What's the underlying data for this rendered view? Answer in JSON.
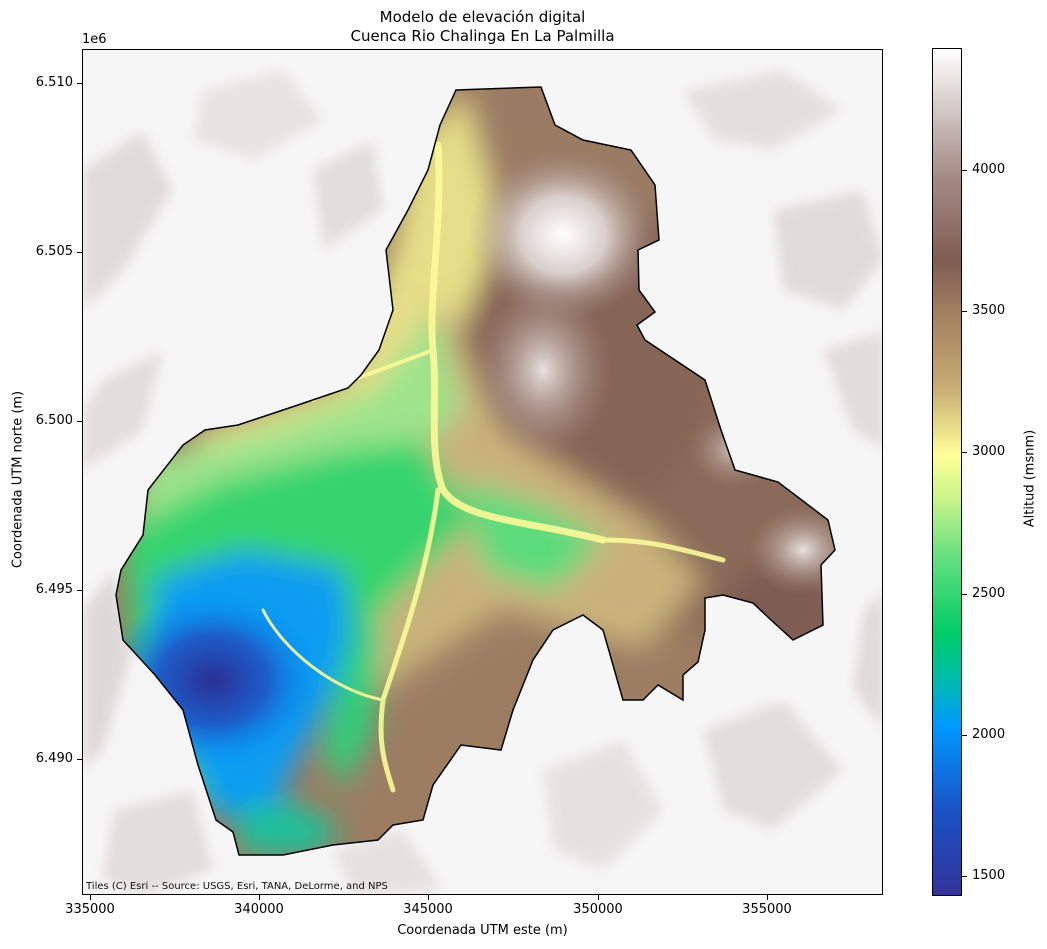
{
  "title_line1": "Modelo de elevación digital",
  "title_line2": "Cuenca Rio Chalinga En La Palmilla",
  "y_offset_label": "1e6",
  "attribution": "Tiles (C) Esri -- Source: USGS, Esri, TANA, DeLorme, and NPS",
  "x_axis": {
    "label": "Coordenada UTM este (m)",
    "range": [
      334850,
      358500
    ],
    "ticks": [
      "335000",
      "340000",
      "345000",
      "350000",
      "355000"
    ]
  },
  "y_axis": {
    "label": "Coordenada UTM norte (m)",
    "range": [
      6486100,
      6511100
    ],
    "ticks": [
      "6.490",
      "6.495",
      "6.500",
      "6.505",
      "6.510"
    ]
  },
  "colorbar": {
    "label": "Altitud (msnm)",
    "range": [
      1430,
      4430
    ],
    "ticks": [
      "1500",
      "2000",
      "2500",
      "3000",
      "3500",
      "4000"
    ],
    "colormap": "terrain"
  },
  "colors": {
    "basemap": "#f7f6f6",
    "hillshade": "#d6d1d1",
    "boundary": "#000000",
    "lowland": "#333399",
    "valley": "#0099ff",
    "slope": "#00cc66",
    "midslope": "#ffff99",
    "upland": "#a07f5f",
    "ridge": "#7f5c52",
    "summit": "#ffffff"
  }
}
